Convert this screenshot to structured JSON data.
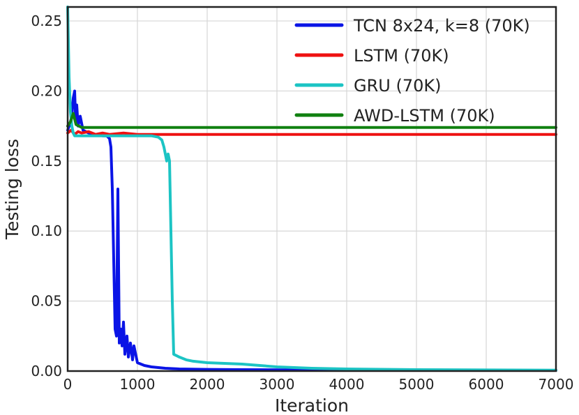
{
  "chart_data": {
    "type": "line",
    "title": "",
    "xlabel": "Iteration",
    "ylabel": "Testing loss",
    "xlim": [
      0,
      7000
    ],
    "ylim": [
      0,
      0.26
    ],
    "xticks": [
      0,
      1000,
      2000,
      3000,
      4000,
      5000,
      6000,
      7000
    ],
    "xtick_labels": [
      "0",
      "1000",
      "2000",
      "3000",
      "4000",
      "5000",
      "6000",
      "7000"
    ],
    "yticks": [
      0,
      0.05,
      0.1,
      0.15,
      0.2,
      0.25
    ],
    "ytick_labels": [
      "0.00",
      "0.05",
      "0.10",
      "0.15",
      "0.20",
      "0.25"
    ],
    "grid": true,
    "legend_position": "top-right",
    "series": [
      {
        "name": "TCN 8x24, k=8 (70K)",
        "color": "#0a14e6",
        "points": [
          [
            0,
            0.172
          ],
          [
            30,
            0.176
          ],
          [
            60,
            0.182
          ],
          [
            80,
            0.195
          ],
          [
            100,
            0.2
          ],
          [
            115,
            0.178
          ],
          [
            130,
            0.19
          ],
          [
            150,
            0.175
          ],
          [
            180,
            0.182
          ],
          [
            220,
            0.172
          ],
          [
            300,
            0.17
          ],
          [
            400,
            0.169
          ],
          [
            500,
            0.168
          ],
          [
            560,
            0.168
          ],
          [
            600,
            0.166
          ],
          [
            620,
            0.16
          ],
          [
            640,
            0.13
          ],
          [
            660,
            0.08
          ],
          [
            680,
            0.03
          ],
          [
            700,
            0.025
          ],
          [
            720,
            0.13
          ],
          [
            740,
            0.02
          ],
          [
            760,
            0.03
          ],
          [
            780,
            0.018
          ],
          [
            800,
            0.035
          ],
          [
            820,
            0.012
          ],
          [
            850,
            0.025
          ],
          [
            870,
            0.01
          ],
          [
            900,
            0.02
          ],
          [
            930,
            0.008
          ],
          [
            950,
            0.018
          ],
          [
            1000,
            0.006
          ],
          [
            1100,
            0.004
          ],
          [
            1200,
            0.003
          ],
          [
            1400,
            0.002
          ],
          [
            1600,
            0.0015
          ],
          [
            2000,
            0.0012
          ],
          [
            2500,
            0.001
          ],
          [
            3000,
            0.0009
          ],
          [
            4000,
            0.0007
          ],
          [
            5000,
            0.0006
          ],
          [
            6000,
            0.0005
          ],
          [
            7000,
            0.0005
          ]
        ]
      },
      {
        "name": "LSTM (70K)",
        "color": "#ee1111",
        "points": [
          [
            0,
            0.17
          ],
          [
            50,
            0.172
          ],
          [
            100,
            0.169
          ],
          [
            150,
            0.171
          ],
          [
            200,
            0.17
          ],
          [
            300,
            0.171
          ],
          [
            400,
            0.169
          ],
          [
            500,
            0.17
          ],
          [
            600,
            0.169
          ],
          [
            800,
            0.17
          ],
          [
            1000,
            0.169
          ],
          [
            1500,
            0.169
          ],
          [
            2000,
            0.169
          ],
          [
            3000,
            0.169
          ],
          [
            4000,
            0.169
          ],
          [
            5000,
            0.169
          ],
          [
            6000,
            0.169
          ],
          [
            7000,
            0.169
          ]
        ]
      },
      {
        "name": "GRU (70K)",
        "color": "#1cc4c4",
        "points": [
          [
            0,
            0.26
          ],
          [
            20,
            0.21
          ],
          [
            40,
            0.185
          ],
          [
            60,
            0.175
          ],
          [
            80,
            0.17
          ],
          [
            100,
            0.168
          ],
          [
            200,
            0.168
          ],
          [
            400,
            0.168
          ],
          [
            600,
            0.168
          ],
          [
            800,
            0.168
          ],
          [
            1000,
            0.168
          ],
          [
            1200,
            0.168
          ],
          [
            1300,
            0.167
          ],
          [
            1350,
            0.165
          ],
          [
            1380,
            0.16
          ],
          [
            1420,
            0.15
          ],
          [
            1440,
            0.155
          ],
          [
            1460,
            0.15
          ],
          [
            1480,
            0.1
          ],
          [
            1500,
            0.05
          ],
          [
            1520,
            0.012
          ],
          [
            1600,
            0.01
          ],
          [
            1700,
            0.008
          ],
          [
            1800,
            0.007
          ],
          [
            2000,
            0.006
          ],
          [
            2500,
            0.005
          ],
          [
            3000,
            0.003
          ],
          [
            3500,
            0.002
          ],
          [
            4000,
            0.0015
          ],
          [
            5000,
            0.001
          ],
          [
            6000,
            0.0008
          ],
          [
            7000,
            0.0006
          ]
        ]
      },
      {
        "name": "AWD-LSTM (70K)",
        "color": "#108010",
        "points": [
          [
            0,
            0.175
          ],
          [
            40,
            0.178
          ],
          [
            80,
            0.184
          ],
          [
            120,
            0.176
          ],
          [
            200,
            0.174
          ],
          [
            300,
            0.174
          ],
          [
            500,
            0.174
          ],
          [
            1000,
            0.174
          ],
          [
            2000,
            0.174
          ],
          [
            3000,
            0.174
          ],
          [
            4000,
            0.174
          ],
          [
            5000,
            0.174
          ],
          [
            6000,
            0.174
          ],
          [
            7000,
            0.174
          ]
        ]
      }
    ]
  }
}
